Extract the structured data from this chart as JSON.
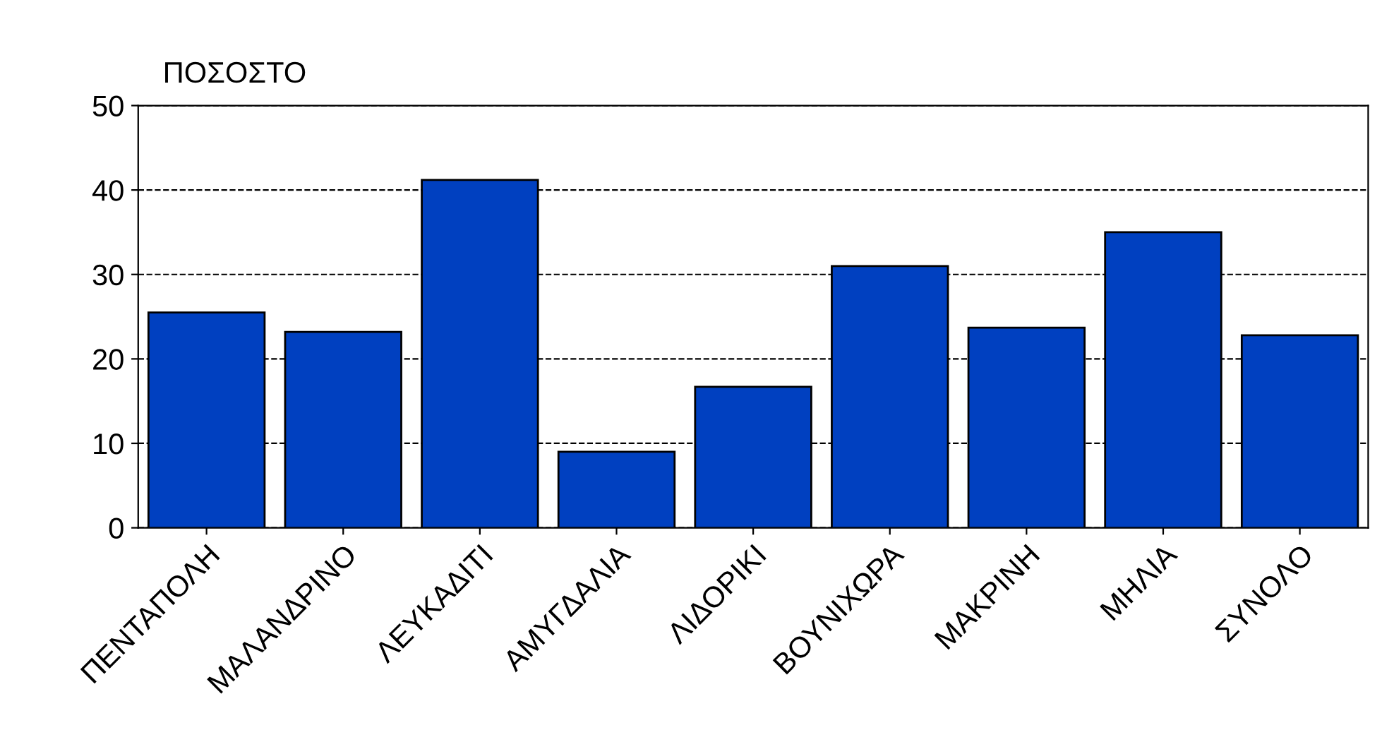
{
  "chart_data": {
    "type": "bar",
    "ylabel": "ΠΟΣΟΣΤΟ",
    "categories": [
      "ΠΕΝΤΑΠΟΛΗ",
      "ΜΑΛΑΝΔΡΙΝΟ",
      "ΛΕΥΚΑΔΙΤΙ",
      "ΑΜΥΓΔΑΛΙΑ",
      "ΛΙΔΟΡΙΚΙ",
      "ΒΟΥΝΙΧΩΡΑ",
      "ΜΑΚΡΙΝΗ",
      "ΜΗΛΙΑ",
      "ΣΥΝΟΛΟ"
    ],
    "values": [
      25.5,
      23.2,
      41.2,
      9,
      16.7,
      31,
      23.7,
      35,
      22.8
    ],
    "color": "#0040c0",
    "ylim": [
      0,
      50
    ],
    "yticks": [
      0,
      10,
      20,
      30,
      40,
      50
    ],
    "grid": "y",
    "line_style": "dashed"
  }
}
